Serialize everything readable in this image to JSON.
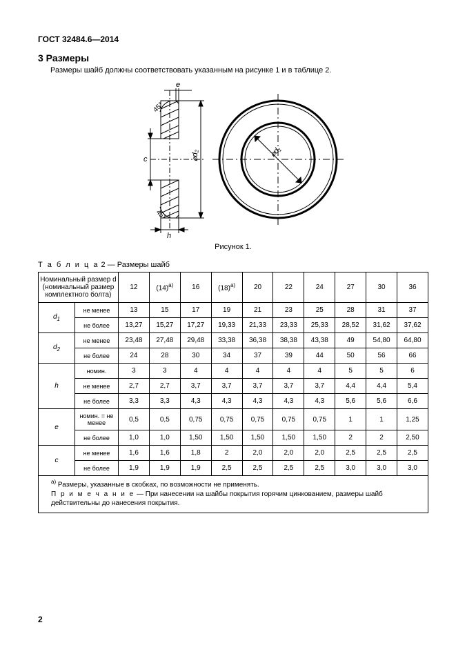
{
  "header": {
    "standard": "ГОСТ 32484.6—2014"
  },
  "section": {
    "number_title": "3 Размеры",
    "intro": "Размеры шайб должны соответствовать указанным на рисунке 1 и в таблице 2."
  },
  "figure": {
    "caption": "Рисунок 1.",
    "washer_diagram": {
      "type": "engineering-drawing",
      "stroke": "#000000",
      "fill": "#ffffff",
      "line_width": 1,
      "front_view": {
        "outer_diameter_label": "⌀d₂",
        "inner_diameter_label": "⌀d₁",
        "centerlines": true
      },
      "section_view": {
        "thickness_label": "h",
        "chamfer_label_top": "e",
        "chamfer_angle_top": "45°",
        "chamfer_label_bottom": "c",
        "chamfer_angle_bottom": "45°",
        "hatch": true
      }
    }
  },
  "table": {
    "caption_prefix": "Т а б л и ц а",
    "caption_rest": " 2 — Размеры шайб",
    "header_nominal": "Номинальный размер d (номинальный размер комплектного болта)",
    "sizes": [
      "12",
      "(14)",
      "16",
      "(18)",
      "20",
      "22",
      "24",
      "27",
      "30",
      "36"
    ],
    "bracket_note_marker": "a)",
    "rows": [
      {
        "param": "d₁",
        "cond": "не менее",
        "vals": [
          "13",
          "15",
          "17",
          "19",
          "21",
          "23",
          "25",
          "28",
          "31",
          "37"
        ]
      },
      {
        "param": "",
        "cond": "не более",
        "vals": [
          "13,27",
          "15,27",
          "17,27",
          "19,33",
          "21,33",
          "23,33",
          "25,33",
          "28,52",
          "31,62",
          "37,62"
        ]
      },
      {
        "param": "d₂",
        "cond": "не менее",
        "vals": [
          "23,48",
          "27,48",
          "29,48",
          "33,38",
          "36,38",
          "38,38",
          "43,38",
          "49",
          "54,80",
          "64,80"
        ]
      },
      {
        "param": "",
        "cond": "не более",
        "vals": [
          "24",
          "28",
          "30",
          "34",
          "37",
          "39",
          "44",
          "50",
          "56",
          "66"
        ]
      },
      {
        "param": "h",
        "cond": "номин.",
        "vals": [
          "3",
          "3",
          "4",
          "4",
          "4",
          "4",
          "4",
          "5",
          "5",
          "6"
        ]
      },
      {
        "param": "",
        "cond": "не менее",
        "vals": [
          "2,7",
          "2,7",
          "3,7",
          "3,7",
          "3,7",
          "3,7",
          "3,7",
          "4,4",
          "4,4",
          "5,4"
        ]
      },
      {
        "param": "",
        "cond": "не более",
        "vals": [
          "3,3",
          "3,3",
          "4,3",
          "4,3",
          "4,3",
          "4,3",
          "4,3",
          "5,6",
          "5,6",
          "6,6"
        ]
      },
      {
        "param": "e",
        "cond": "номин. = не менее",
        "vals": [
          "0,5",
          "0,5",
          "0,75",
          "0,75",
          "0,75",
          "0,75",
          "0,75",
          "1",
          "1",
          "1,25"
        ]
      },
      {
        "param": "",
        "cond": "не более",
        "vals": [
          "1,0",
          "1,0",
          "1,50",
          "1,50",
          "1,50",
          "1,50",
          "1,50",
          "2",
          "2",
          "2,50"
        ]
      },
      {
        "param": "c",
        "cond": "не менее",
        "vals": [
          "1,6",
          "1,6",
          "1,8",
          "2",
          "2,0",
          "2,0",
          "2,0",
          "2,5",
          "2,5",
          "2,5"
        ]
      },
      {
        "param": "",
        "cond": "не более",
        "vals": [
          "1,9",
          "1,9",
          "1,9",
          "2,5",
          "2,5",
          "2,5",
          "2,5",
          "3,0",
          "3,0",
          "3,0"
        ]
      }
    ],
    "footnote_a": "Размеры, указанные в скобках, по возможности не применять.",
    "note_label": "П р и м е ч а н и е",
    "note_text": " — При нанесении на шайбы покрытия горячим цинкованием, размеры шайб действительны до нанесения покрытия."
  },
  "page_number": "2"
}
